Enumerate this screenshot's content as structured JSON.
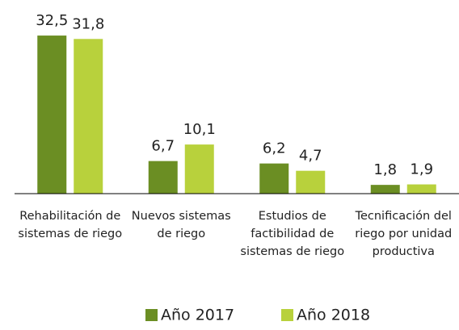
{
  "chart_data": {
    "type": "bar",
    "categories": [
      "Rehabilitación de sistemas de riego",
      "Nuevos sistemas de riego",
      "Estudios de factibilidad de sistemas de riego",
      "Tecnificación del riego por unidad productiva"
    ],
    "series": [
      {
        "name": "Año 2017",
        "color": "#6b8e23",
        "values": [
          32.5,
          6.7,
          6.2,
          1.8
        ],
        "value_labels": [
          "32,5",
          "6,7",
          "6,2",
          "1,8"
        ]
      },
      {
        "name": "Año 2018",
        "color": "#b8d13c",
        "values": [
          31.8,
          10.1,
          4.7,
          1.9
        ],
        "value_labels": [
          "31,8",
          "10,1",
          "4,7",
          "1,9"
        ]
      }
    ],
    "ylim": [
      0,
      35
    ],
    "legend": "bottom"
  }
}
